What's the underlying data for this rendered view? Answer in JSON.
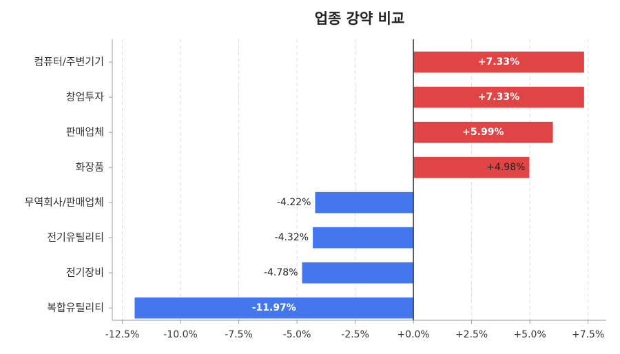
{
  "chart_data": {
    "type": "barh",
    "title": "업종 강약 비교",
    "categories": [
      "컴퓨터/주변기기",
      "창업투자",
      "판매업체",
      "화장품",
      "무역회사/판매업체",
      "전기유틸리티",
      "전기장비",
      "복합유틸리티"
    ],
    "values": [
      7.33,
      7.33,
      5.99,
      4.98,
      -4.22,
      -4.32,
      -4.78,
      -11.97
    ],
    "value_labels": [
      "+7.33%",
      "+7.33%",
      "+5.99%",
      "+4.98%",
      "-4.22%",
      "-4.32%",
      "-4.78%",
      "-11.97%"
    ],
    "positive_color": "#e04444",
    "negative_color": "#4477ee",
    "xlim": [
      -12.93,
      8.28
    ],
    "xticks": [
      {
        "value": -12.5,
        "label": "-12.5%"
      },
      {
        "value": -10,
        "label": "-10.0%"
      },
      {
        "value": -7.5,
        "label": "-7.5%"
      },
      {
        "value": -5,
        "label": "-5.0%"
      },
      {
        "value": -2.5,
        "label": "-2.5%"
      },
      {
        "value": 0,
        "label": "+0.0%"
      },
      {
        "value": 2.5,
        "label": "+2.5%"
      },
      {
        "value": 5,
        "label": "+5.0%"
      },
      {
        "value": 7.5,
        "label": "+7.5%"
      }
    ],
    "grid": true
  }
}
